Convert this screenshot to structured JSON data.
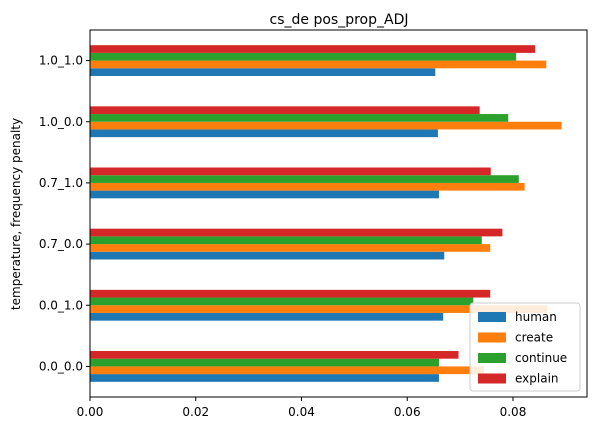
{
  "chart_data": {
    "type": "bar",
    "orientation": "horizontal",
    "title": "cs_de pos_prop_ADJ",
    "xlabel": "",
    "ylabel": "temperature, frequency penalty",
    "categories": [
      "0.0_0.0",
      "0.0_1.0",
      "0.7_0.0",
      "0.7_1.0",
      "1.0_0.0",
      "1.0_1.0"
    ],
    "xlim": [
      0.0,
      0.094
    ],
    "xticks": [
      0.0,
      0.02,
      0.04,
      0.06,
      0.08
    ],
    "xtick_labels": [
      "0.00",
      "0.02",
      "0.04",
      "0.06",
      "0.08"
    ],
    "grid": false,
    "legend_position": "lower right",
    "series": [
      {
        "name": "human",
        "color": "#1f77b4",
        "values": [
          0.066,
          0.0668,
          0.067,
          0.066,
          0.0658,
          0.0653
        ]
      },
      {
        "name": "create",
        "color": "#ff7f0e",
        "values": [
          0.0745,
          0.0865,
          0.0757,
          0.0822,
          0.0892,
          0.0863
        ]
      },
      {
        "name": "continue",
        "color": "#2ca02c",
        "values": [
          0.066,
          0.0725,
          0.0741,
          0.0811,
          0.0791,
          0.0806
        ]
      },
      {
        "name": "explain",
        "color": "#d62728",
        "values": [
          0.0697,
          0.0757,
          0.078,
          0.0758,
          0.0737,
          0.0842
        ]
      }
    ]
  }
}
